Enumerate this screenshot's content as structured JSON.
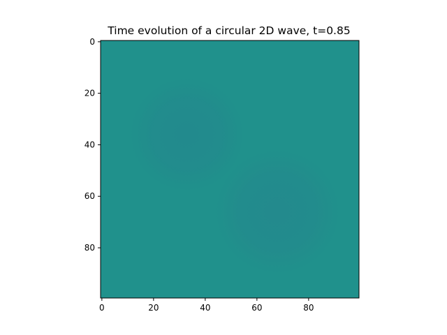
{
  "chart_data": {
    "type": "heatmap",
    "title": "Time evolution of a circular 2D wave, t=0.85",
    "xlabel": "",
    "ylabel": "",
    "grid_size": [
      100,
      100
    ],
    "xlim": [
      -0.5,
      99.5
    ],
    "ylim": [
      99.5,
      -0.5
    ],
    "xticks": [
      0,
      20,
      40,
      60,
      80
    ],
    "yticks": [
      0,
      20,
      40,
      60,
      80
    ],
    "grid": false,
    "colormap": "viridis",
    "background_value_color": "#20918c",
    "features": [
      {
        "name": "trough-upper-left",
        "center": [
          33,
          36
        ],
        "radius": 22,
        "color": "#228a8d"
      },
      {
        "name": "trough-lower-right",
        "center": [
          68,
          66
        ],
        "radius": 24,
        "color": "#238a8d"
      },
      {
        "name": "ring-edge",
        "color": "#21908d"
      }
    ]
  }
}
